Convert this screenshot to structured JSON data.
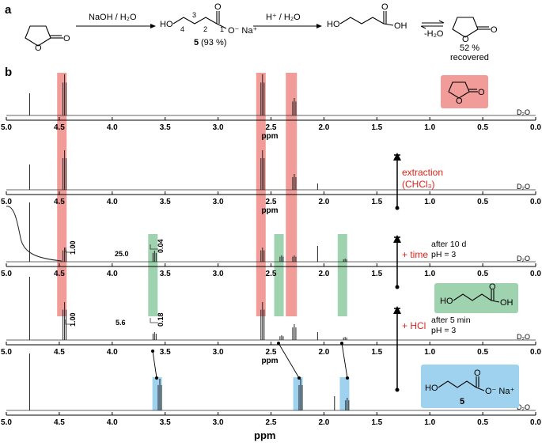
{
  "panels": {
    "a": "a",
    "b": "b"
  },
  "scheme": {
    "step1_reagent": "NaOH / H₂O",
    "step2_reagent": "H⁺ / H₂O",
    "step3_reagent": "-H₂O",
    "compound5_label": "5",
    "compound5_yield": "(93 %)",
    "carboxylate": "O⁻ Na⁺",
    "recovered_pct": "52 %",
    "recovered_text": "recovered",
    "ho": "HO",
    "oh": "OH",
    "o": "O",
    "carbon_numbers": [
      "1",
      "2",
      "3",
      "4"
    ]
  },
  "axis": {
    "ticks": [
      "5.0",
      "4.5",
      "4.0",
      "3.5",
      "3.0",
      "2.5",
      "2.0",
      "1.5",
      "1.0",
      "0.5",
      "0.0"
    ],
    "unit": "ppm",
    "xlim": [
      5.0,
      0.0
    ]
  },
  "spectra": [
    {
      "solvent": "D₂O",
      "peaks": [
        4.78,
        4.45,
        2.58,
        2.28
      ]
    },
    {
      "solvent": "D₂O",
      "peaks": [
        4.78,
        4.45,
        2.58,
        2.28,
        2.06
      ]
    },
    {
      "solvent": "D₂O",
      "peaks": [
        4.78,
        4.45,
        3.6,
        2.58,
        2.4,
        2.28,
        2.06,
        1.8
      ],
      "integrals": [
        "1.00",
        "25.0",
        "0.04"
      ]
    },
    {
      "solvent": "D₂O",
      "peaks": [
        4.78,
        4.45,
        3.6,
        2.58,
        2.4,
        2.28,
        2.06,
        1.8
      ],
      "integrals": [
        "1.00",
        "5.6",
        "0.18"
      ]
    },
    {
      "solvent": "D₂O",
      "peaks": [
        4.78,
        3.55,
        2.22,
        1.9,
        1.78
      ]
    }
  ],
  "annotations": {
    "extraction": "extraction",
    "chcl3": "(CHCl₃)",
    "time": "+ time",
    "after10d": "after 10 d",
    "ph3": "pH = 3",
    "hcl": "+ HCl",
    "after5min": "after 5 min",
    "ph3b": "pH = 3",
    "compound5": "5"
  },
  "colors": {
    "red": "#f19c98",
    "green": "#9fd3b0",
    "blue": "#9fd2ef",
    "accent_red": "#e2231a"
  }
}
